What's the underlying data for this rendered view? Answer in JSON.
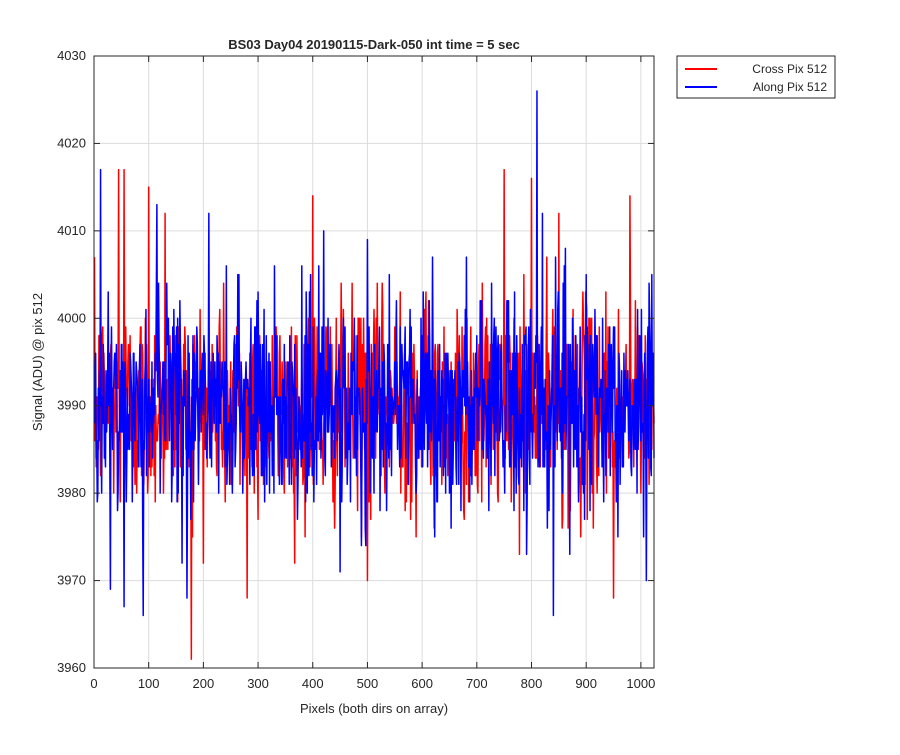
{
  "chart_data": {
    "type": "line",
    "title": "BS03 Day04 20190115-Dark-050 int time = 5 sec",
    "xlabel": "Pixels (both dirs on array)",
    "ylabel": "Signal (ADU) @ pix 512",
    "xlim": [
      0,
      1024
    ],
    "ylim": [
      3960,
      4030
    ],
    "xticks": [
      0,
      100,
      200,
      300,
      400,
      500,
      600,
      700,
      800,
      900,
      1000
    ],
    "yticks": [
      3960,
      3970,
      3980,
      3990,
      4000,
      4010,
      4020,
      4030
    ],
    "xtick_labels": [
      "0",
      "100",
      "200",
      "300",
      "400",
      "500",
      "600",
      "700",
      "800",
      "900",
      "1000"
    ],
    "ytick_labels": [
      "3960",
      "3970",
      "3980",
      "3990",
      "4000",
      "4010",
      "4020",
      "4030"
    ],
    "grid": true,
    "legend_position": "outside-top-right",
    "series": [
      {
        "name": "Cross Pix 512",
        "color": "#ff0000",
        "baseline": 3990,
        "x_start": 1,
        "x_end": 1024,
        "extremes": [
          [
            45,
            4017
          ],
          [
            55,
            4017
          ],
          [
            100,
            4015
          ],
          [
            130,
            4012
          ],
          [
            178,
            3961
          ],
          [
            230,
            4001
          ],
          [
            280,
            3968
          ],
          [
            400,
            4014
          ],
          [
            500,
            3970
          ],
          [
            560,
            4003
          ],
          [
            700,
            3989
          ],
          [
            750,
            4017
          ],
          [
            800,
            4016
          ],
          [
            850,
            4012
          ],
          [
            950,
            3968
          ],
          [
            980,
            4014
          ]
        ]
      },
      {
        "name": "Along Pix 512",
        "color": "#0000ff",
        "baseline": 3990,
        "x_start": 1,
        "x_end": 1024,
        "extremes": [
          [
            12,
            4017
          ],
          [
            30,
            3969
          ],
          [
            55,
            3967
          ],
          [
            90,
            3966
          ],
          [
            115,
            4013
          ],
          [
            170,
            3968
          ],
          [
            210,
            4012
          ],
          [
            300,
            4003
          ],
          [
            380,
            4006
          ],
          [
            420,
            4010
          ],
          [
            450,
            3971
          ],
          [
            500,
            4009
          ],
          [
            600,
            3998
          ],
          [
            700,
            3998
          ],
          [
            810,
            4026
          ],
          [
            820,
            4012
          ],
          [
            840,
            3966
          ],
          [
            900,
            4005
          ],
          [
            1010,
            3970
          ],
          [
            1020,
            4005
          ]
        ]
      }
    ]
  }
}
